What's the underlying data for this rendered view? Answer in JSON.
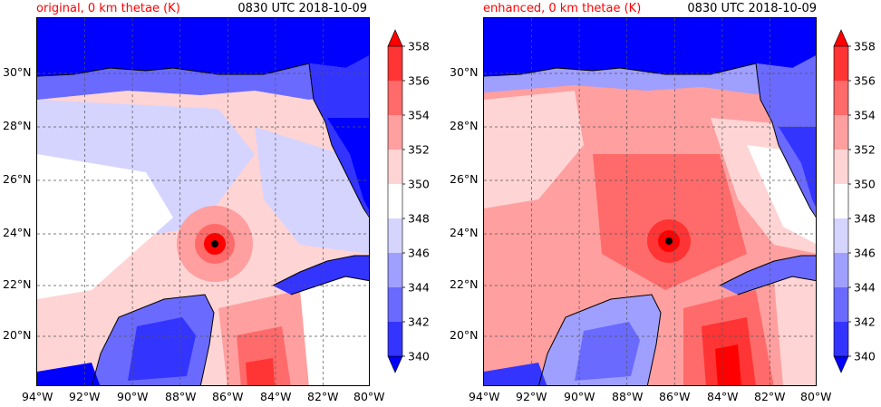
{
  "panels": [
    {
      "title_left": "original, 0 km thetae (K)",
      "title_right": "0830 UTC 2018-10-09",
      "storm_center": {
        "lon": -86.6,
        "lat": 23.55
      }
    },
    {
      "title_left": "enhanced, 0 km thetae (K)",
      "title_right": "0830 UTC 2018-10-09",
      "storm_center": {
        "lon": -86.1,
        "lat": 23.7
      }
    }
  ],
  "lat_labels": [
    "30°N",
    "28°N",
    "26°N",
    "24°N",
    "22°N",
    "20°N"
  ],
  "lon_labels": [
    "94°W",
    "92°W",
    "90°W",
    "88°W",
    "86°W",
    "84°W",
    "82°W",
    "80°W"
  ],
  "map_extent": {
    "lon": [
      -94,
      -80
    ],
    "lat": [
      18.2,
      32.0
    ]
  },
  "colorbar": {
    "levels": [
      "340",
      "342",
      "344",
      "346",
      "348",
      "350",
      "352",
      "354",
      "356",
      "358"
    ],
    "colors": [
      "#0000ff",
      "#3434ff",
      "#6a6aff",
      "#9f9fff",
      "#d4d4ff",
      "#ffffff",
      "#ffd4d4",
      "#ff9f9f",
      "#ff6a6a",
      "#ff3434",
      "#ff0000"
    ],
    "under_color": "#0000ff",
    "over_color": "#ff0000"
  }
}
